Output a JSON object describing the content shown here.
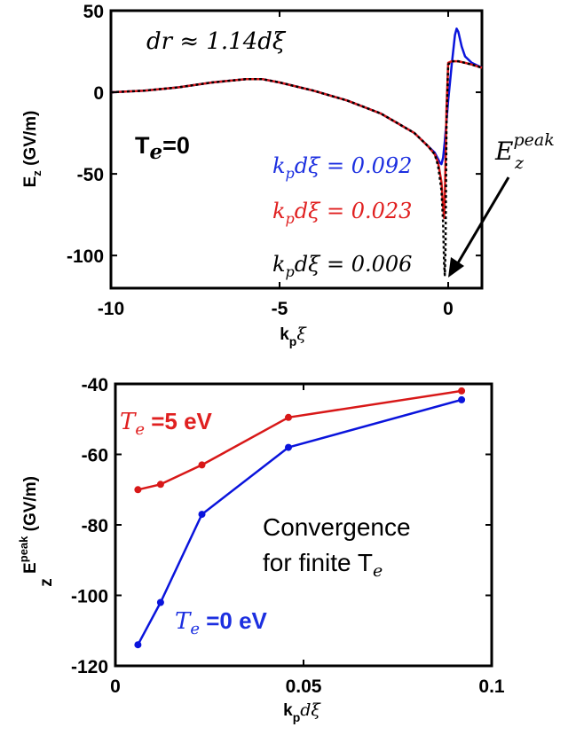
{
  "colors": {
    "blue": "#1c2fe0",
    "red": "#e02020",
    "black": "#000000",
    "curve_blue": "#0a14dc",
    "curve_red": "#d81818"
  },
  "chart_data": [
    {
      "type": "line",
      "title": "",
      "xlabel": {
        "main": "k",
        "sub": "p",
        "tail": "ξ"
      },
      "ylabel": {
        "main": "E",
        "sub": "z",
        "tail": " (GV/m)"
      },
      "xlim": [
        -10,
        1
      ],
      "ylim": [
        -120,
        50
      ],
      "xticks": [
        -10,
        -5,
        0
      ],
      "xtick_labels": [
        "-10",
        "-5",
        "0"
      ],
      "yticks": [
        50,
        0,
        -50,
        -100
      ],
      "ytick_labels": [
        "50",
        "0",
        "-50",
        "-100"
      ],
      "grid": false,
      "annotations": {
        "resolution": "dr ≈ 1.14dξ",
        "temperature": {
          "main": "T",
          "sub": "e",
          "tail": "=0"
        },
        "peak_label": {
          "main": "E",
          "sub": "z",
          "sup": "peak"
        },
        "legend_entries": [
          {
            "main": "k",
            "sub": "p",
            "tail": "dξ = 0.092",
            "color": "blue"
          },
          {
            "main": "k",
            "sub": "p",
            "tail": "dξ = 0.023",
            "color": "red"
          },
          {
            "main": "k",
            "sub": "p",
            "tail": "dξ = 0.006",
            "color": "black"
          }
        ]
      },
      "series": [
        {
          "name": "k_p dξ = 0.092",
          "color": "blue",
          "x": [
            -10,
            -9,
            -8,
            -7,
            -6,
            -5.5,
            -5,
            -4,
            -3,
            -2,
            -1.5,
            -1,
            -0.6,
            -0.4,
            -0.3,
            -0.25,
            -0.2,
            -0.15,
            -0.1,
            0,
            0.1,
            0.2,
            0.25,
            0.3,
            0.4,
            0.5,
            0.7,
            1.0
          ],
          "y": [
            0,
            1,
            3,
            6,
            8,
            8,
            6,
            1,
            -5,
            -13,
            -19,
            -25,
            -33,
            -37,
            -41,
            -43,
            -44,
            -40,
            -30,
            -5,
            16,
            35,
            39,
            37,
            28,
            22,
            18,
            15
          ]
        },
        {
          "name": "k_p dξ = 0.023",
          "color": "red",
          "x": [
            -10,
            -9,
            -8,
            -7,
            -6,
            -5.5,
            -5,
            -4,
            -3,
            -2,
            -1.5,
            -1,
            -0.6,
            -0.4,
            -0.3,
            -0.2,
            -0.15,
            -0.12,
            -0.1,
            -0.05,
            0,
            0.1,
            0.3,
            0.5,
            0.7,
            1.0
          ],
          "y": [
            0,
            1,
            3,
            6,
            8,
            8,
            6,
            1,
            -5,
            -13,
            -19,
            -25,
            -33,
            -38,
            -43,
            -55,
            -70,
            -77,
            -65,
            -10,
            18,
            19,
            19,
            18,
            17,
            15
          ]
        },
        {
          "name": "k_p dξ = 0.006",
          "color": "black",
          "dashed": true,
          "x": [
            -10,
            -9,
            -8,
            -7,
            -6,
            -5.5,
            -5,
            -4,
            -3,
            -2,
            -1.5,
            -1,
            -0.6,
            -0.4,
            -0.3,
            -0.2,
            -0.15,
            -0.12,
            -0.1,
            -0.08,
            -0.05,
            0,
            0.1,
            0.3,
            0.5,
            0.7,
            1.0
          ],
          "y": [
            0,
            1,
            3,
            6,
            8,
            8,
            6,
            1,
            -5,
            -13,
            -19,
            -25,
            -33,
            -38,
            -45,
            -60,
            -80,
            -105,
            -112,
            -95,
            -20,
            17,
            19,
            19,
            18,
            17,
            15
          ]
        }
      ]
    },
    {
      "type": "line",
      "title": "",
      "xlabel": {
        "main": "k",
        "sub": "p",
        "tail": "dξ"
      },
      "ylabel": {
        "main": "E",
        "sub": "z",
        "sup": "peak",
        "tail": " (GV/m)"
      },
      "xlim": [
        0,
        0.1
      ],
      "ylim": [
        -120,
        -40
      ],
      "xticks": [
        0,
        0.05,
        0.1
      ],
      "xtick_labels": [
        "0",
        "0.05",
        "0.1"
      ],
      "yticks": [
        -40,
        -60,
        -80,
        -100,
        -120
      ],
      "ytick_labels": [
        "-40",
        "-60",
        "-80",
        "-100",
        "-120"
      ],
      "grid": false,
      "annotations": {
        "convergence_line1": "Convergence",
        "convergence_line2": {
          "main": "for finite T",
          "sub": "e"
        },
        "label_red": {
          "main": "T",
          "sub": "e",
          "tail": " =5 eV"
        },
        "label_blue": {
          "main": "T",
          "sub": "e",
          "tail": " =0 eV"
        }
      },
      "series": [
        {
          "name": "T_e = 5 eV",
          "color": "red",
          "x": [
            0.006,
            0.012,
            0.023,
            0.046,
            0.092
          ],
          "y": [
            -70,
            -68.5,
            -63,
            -49.5,
            -42
          ]
        },
        {
          "name": "T_e = 0 eV",
          "color": "blue",
          "x": [
            0.006,
            0.012,
            0.023,
            0.046,
            0.092
          ],
          "y": [
            -114,
            -102,
            -77,
            -58,
            -44.5
          ]
        }
      ]
    }
  ]
}
